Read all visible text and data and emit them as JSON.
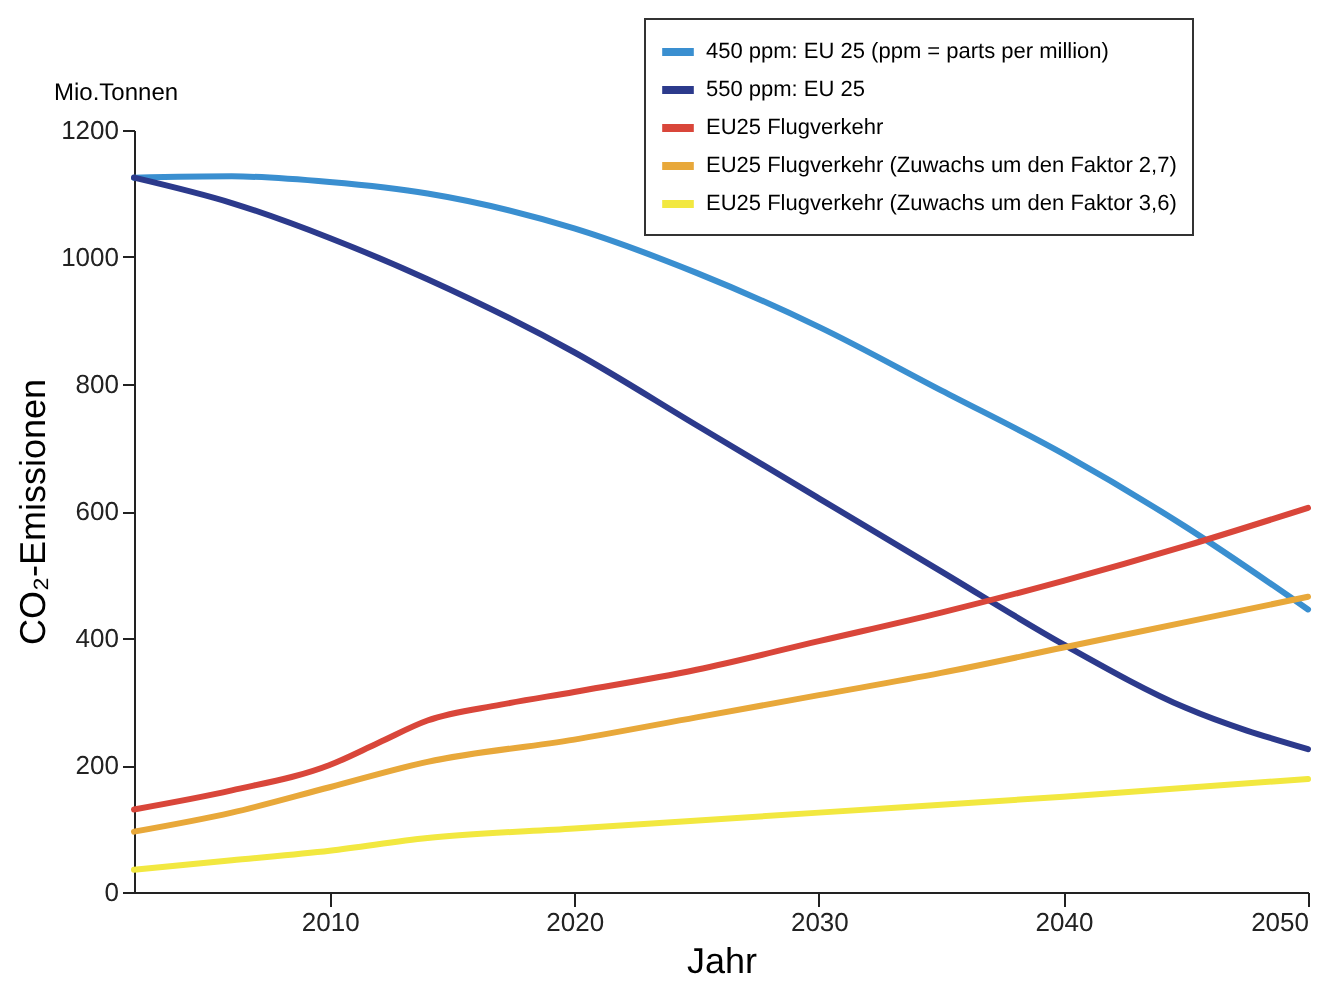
{
  "chart_data": {
    "type": "line",
    "title": "Mio.Tonnen",
    "xlabel": "Jahr",
    "ylabel": "CO₂-Emissionen",
    "xlim": [
      2002,
      2050
    ],
    "xticks": [
      2010,
      2020,
      2030,
      2040,
      2050
    ],
    "ylim": [
      0,
      1200
    ],
    "yticks": [
      0,
      200,
      400,
      600,
      800,
      1000,
      1200
    ],
    "grid": false,
    "legend": "top right",
    "series": [
      {
        "name": "450 ppm: EU 25 (ppm = parts per million)",
        "color": "#3a8fd0",
        "x": [
          2002,
          2006,
          2010,
          2014,
          2020,
          2025,
          2030,
          2035,
          2040,
          2045,
          2050
        ],
        "values": [
          1125,
          1127,
          1118,
          1100,
          1045,
          975,
          890,
          790,
          690,
          575,
          445
        ]
      },
      {
        "name": "550 ppm: EU 25",
        "color": "#2c3a8c",
        "x": [
          2002,
          2006,
          2010,
          2014,
          2020,
          2025,
          2030,
          2035,
          2040,
          2045,
          2050
        ],
        "values": [
          1125,
          1085,
          1030,
          965,
          850,
          735,
          620,
          505,
          390,
          290,
          225
        ]
      },
      {
        "name": "EU25 Flugverkehr",
        "color": "#d9463a",
        "x": [
          2002,
          2006,
          2010,
          2012,
          2014,
          2017,
          2020,
          2025,
          2030,
          2035,
          2040,
          2045,
          2050
        ],
        "values": [
          130,
          160,
          200,
          235,
          270,
          295,
          315,
          350,
          395,
          440,
          490,
          545,
          605
        ]
      },
      {
        "name": "EU25 Flugverkehr (Zuwachs um den Faktor 2,7)",
        "color": "#e8a83a",
        "x": [
          2002,
          2006,
          2010,
          2014,
          2020,
          2025,
          2030,
          2035,
          2040,
          2045,
          2050
        ],
        "values": [
          95,
          125,
          165,
          205,
          240,
          275,
          310,
          345,
          385,
          425,
          465
        ]
      },
      {
        "name": "EU25 Flugverkehr (Zuwachs um den Faktor 3,6)",
        "color": "#f2e840",
        "x": [
          2002,
          2006,
          2010,
          2014,
          2020,
          2030,
          2040,
          2050
        ],
        "values": [
          35,
          50,
          65,
          85,
          100,
          125,
          150,
          178
        ]
      }
    ]
  }
}
